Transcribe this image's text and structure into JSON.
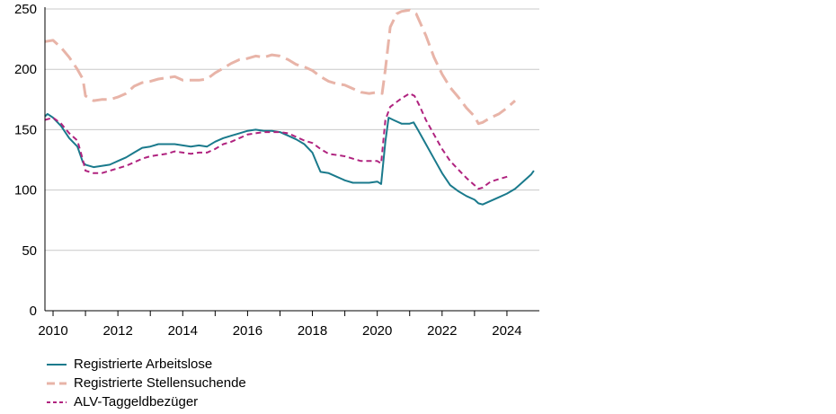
{
  "chart_data": {
    "type": "line",
    "xlim": [
      2009.75,
      2025.0
    ],
    "ylim": [
      0,
      250
    ],
    "x_ticks": [
      "2010",
      "2012",
      "2014",
      "2016",
      "2018",
      "2020",
      "2022",
      "2024"
    ],
    "y_ticks": [
      "0",
      "50",
      "100",
      "150",
      "200",
      "250"
    ],
    "grid": "horizontal",
    "legend_position": "bottom-left",
    "series": [
      {
        "name": "Registrierte Arbeitslose",
        "color": "#1a7a8c",
        "style": "solid",
        "points": [
          [
            2009.75,
            161
          ],
          [
            2009.83,
            163
          ],
          [
            2010.0,
            160
          ],
          [
            2010.25,
            153
          ],
          [
            2010.5,
            143
          ],
          [
            2010.75,
            136
          ],
          [
            2010.92,
            123
          ],
          [
            2011.0,
            121
          ],
          [
            2011.25,
            119
          ],
          [
            2011.5,
            120
          ],
          [
            2011.75,
            121
          ],
          [
            2012.0,
            124
          ],
          [
            2012.25,
            127
          ],
          [
            2012.5,
            131
          ],
          [
            2012.75,
            135
          ],
          [
            2013.0,
            136
          ],
          [
            2013.25,
            138
          ],
          [
            2013.5,
            138
          ],
          [
            2013.75,
            138
          ],
          [
            2014.0,
            137
          ],
          [
            2014.25,
            136
          ],
          [
            2014.5,
            137
          ],
          [
            2014.75,
            136
          ],
          [
            2015.0,
            140
          ],
          [
            2015.25,
            143
          ],
          [
            2015.5,
            145
          ],
          [
            2015.75,
            147
          ],
          [
            2016.0,
            149
          ],
          [
            2016.25,
            150
          ],
          [
            2016.5,
            149
          ],
          [
            2016.75,
            149
          ],
          [
            2017.0,
            148
          ],
          [
            2017.25,
            145
          ],
          [
            2017.5,
            142
          ],
          [
            2017.75,
            138
          ],
          [
            2018.0,
            131
          ],
          [
            2018.17,
            120
          ],
          [
            2018.25,
            115
          ],
          [
            2018.5,
            114
          ],
          [
            2018.75,
            111
          ],
          [
            2019.0,
            108
          ],
          [
            2019.25,
            106
          ],
          [
            2019.5,
            106
          ],
          [
            2019.75,
            106
          ],
          [
            2020.0,
            107
          ],
          [
            2020.12,
            105
          ],
          [
            2020.25,
            140
          ],
          [
            2020.35,
            160
          ],
          [
            2020.5,
            158
          ],
          [
            2020.75,
            155
          ],
          [
            2021.0,
            155
          ],
          [
            2021.12,
            156
          ],
          [
            2021.25,
            150
          ],
          [
            2021.5,
            138
          ],
          [
            2021.75,
            126
          ],
          [
            2022.0,
            114
          ],
          [
            2022.25,
            104
          ],
          [
            2022.5,
            99
          ],
          [
            2022.75,
            95
          ],
          [
            2023.0,
            92
          ],
          [
            2023.12,
            89
          ],
          [
            2023.25,
            88
          ],
          [
            2023.5,
            91
          ],
          [
            2023.75,
            94
          ],
          [
            2024.0,
            97
          ],
          [
            2024.25,
            101
          ],
          [
            2024.5,
            107
          ],
          [
            2024.75,
            113
          ],
          [
            2024.83,
            116
          ]
        ]
      },
      {
        "name": "Registrierte Stellensuchende",
        "color": "#e8b4a8",
        "style": "dashed",
        "points": [
          [
            2009.75,
            223
          ],
          [
            2010.0,
            224
          ],
          [
            2010.25,
            218
          ],
          [
            2010.5,
            210
          ],
          [
            2010.75,
            200
          ],
          [
            2010.92,
            192
          ],
          [
            2011.0,
            178
          ],
          [
            2011.25,
            174
          ],
          [
            2011.5,
            175
          ],
          [
            2011.75,
            175
          ],
          [
            2012.0,
            177
          ],
          [
            2012.25,
            180
          ],
          [
            2012.5,
            186
          ],
          [
            2012.75,
            189
          ],
          [
            2013.0,
            190
          ],
          [
            2013.25,
            192
          ],
          [
            2013.5,
            193
          ],
          [
            2013.75,
            194
          ],
          [
            2014.0,
            191
          ],
          [
            2014.25,
            191
          ],
          [
            2014.5,
            191
          ],
          [
            2014.75,
            192
          ],
          [
            2015.0,
            197
          ],
          [
            2015.25,
            201
          ],
          [
            2015.5,
            205
          ],
          [
            2015.75,
            208
          ],
          [
            2016.0,
            209
          ],
          [
            2016.25,
            211
          ],
          [
            2016.5,
            210
          ],
          [
            2016.75,
            212
          ],
          [
            2017.0,
            211
          ],
          [
            2017.25,
            208
          ],
          [
            2017.5,
            204
          ],
          [
            2017.75,
            202
          ],
          [
            2018.0,
            199
          ],
          [
            2018.25,
            194
          ],
          [
            2018.5,
            190
          ],
          [
            2018.75,
            188
          ],
          [
            2019.0,
            187
          ],
          [
            2019.25,
            184
          ],
          [
            2019.5,
            181
          ],
          [
            2019.75,
            180
          ],
          [
            2020.0,
            181
          ],
          [
            2020.15,
            180
          ],
          [
            2020.25,
            200
          ],
          [
            2020.4,
            235
          ],
          [
            2020.6,
            246
          ],
          [
            2020.75,
            248
          ],
          [
            2021.0,
            249
          ],
          [
            2021.2,
            246
          ],
          [
            2021.5,
            228
          ],
          [
            2021.75,
            210
          ],
          [
            2022.0,
            196
          ],
          [
            2022.25,
            185
          ],
          [
            2022.5,
            177
          ],
          [
            2022.75,
            168
          ],
          [
            2023.0,
            161
          ],
          [
            2023.12,
            155
          ],
          [
            2023.25,
            156
          ],
          [
            2023.5,
            160
          ],
          [
            2023.75,
            163
          ],
          [
            2024.0,
            168
          ],
          [
            2024.25,
            174
          ]
        ]
      },
      {
        "name": "ALV-Taggeldbezüger",
        "color": "#b0237f",
        "style": "dashed",
        "points": [
          [
            2009.75,
            158
          ],
          [
            2010.0,
            160
          ],
          [
            2010.25,
            155
          ],
          [
            2010.5,
            147
          ],
          [
            2010.75,
            141
          ],
          [
            2010.92,
            125
          ],
          [
            2011.0,
            116
          ],
          [
            2011.25,
            114
          ],
          [
            2011.5,
            114
          ],
          [
            2011.75,
            116
          ],
          [
            2012.0,
            118
          ],
          [
            2012.25,
            120
          ],
          [
            2012.5,
            123
          ],
          [
            2012.75,
            126
          ],
          [
            2013.0,
            128
          ],
          [
            2013.25,
            129
          ],
          [
            2013.5,
            130
          ],
          [
            2013.75,
            132
          ],
          [
            2014.0,
            131
          ],
          [
            2014.25,
            130
          ],
          [
            2014.5,
            131
          ],
          [
            2014.75,
            131
          ],
          [
            2015.0,
            134
          ],
          [
            2015.25,
            138
          ],
          [
            2015.5,
            140
          ],
          [
            2015.75,
            143
          ],
          [
            2016.0,
            146
          ],
          [
            2016.25,
            147
          ],
          [
            2016.5,
            148
          ],
          [
            2016.75,
            148
          ],
          [
            2017.0,
            148
          ],
          [
            2017.25,
            147
          ],
          [
            2017.5,
            144
          ],
          [
            2017.75,
            141
          ],
          [
            2018.0,
            139
          ],
          [
            2018.25,
            134
          ],
          [
            2018.5,
            130
          ],
          [
            2018.75,
            129
          ],
          [
            2019.0,
            128
          ],
          [
            2019.25,
            126
          ],
          [
            2019.5,
            124
          ],
          [
            2019.75,
            124
          ],
          [
            2020.0,
            124
          ],
          [
            2020.12,
            122
          ],
          [
            2020.25,
            158
          ],
          [
            2020.4,
            169
          ],
          [
            2020.6,
            173
          ],
          [
            2020.75,
            176
          ],
          [
            2021.0,
            180
          ],
          [
            2021.15,
            178
          ],
          [
            2021.3,
            170
          ],
          [
            2021.5,
            158
          ],
          [
            2021.75,
            146
          ],
          [
            2022.0,
            134
          ],
          [
            2022.25,
            124
          ],
          [
            2022.5,
            117
          ],
          [
            2022.75,
            110
          ],
          [
            2023.0,
            104
          ],
          [
            2023.12,
            101
          ],
          [
            2023.25,
            102
          ],
          [
            2023.5,
            107
          ],
          [
            2023.75,
            109
          ],
          [
            2024.0,
            111
          ],
          [
            2024.1,
            112
          ]
        ]
      }
    ]
  }
}
